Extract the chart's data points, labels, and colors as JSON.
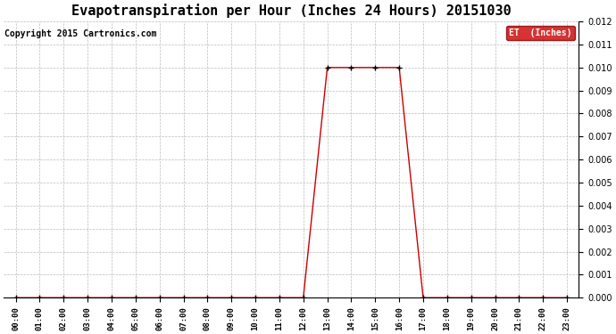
{
  "title": "Evapotranspiration per Hour (Inches 24 Hours) 20151030",
  "copyright": "Copyright 2015 Cartronics.com",
  "legend_label": "ET  (Inches)",
  "legend_bg": "#cc0000",
  "legend_text_color": "#ffffff",
  "line_color": "#cc0000",
  "marker_color": "#000000",
  "bg_color": "#ffffff",
  "grid_color": "#bbbbbb",
  "ylim": [
    0.0,
    0.012
  ],
  "yticks": [
    0.0,
    0.001,
    0.002,
    0.003,
    0.004,
    0.005,
    0.006,
    0.007,
    0.008,
    0.009,
    0.01,
    0.011,
    0.012
  ],
  "hours": [
    "00:00",
    "01:00",
    "02:00",
    "03:00",
    "04:00",
    "05:00",
    "06:00",
    "07:00",
    "08:00",
    "09:00",
    "10:00",
    "11:00",
    "12:00",
    "13:00",
    "14:00",
    "15:00",
    "16:00",
    "17:00",
    "18:00",
    "19:00",
    "20:00",
    "21:00",
    "22:00",
    "23:00"
  ],
  "values": [
    0.0,
    0.0,
    0.0,
    0.0,
    0.0,
    0.0,
    0.0,
    0.0,
    0.0,
    0.0,
    0.0,
    0.0,
    0.0,
    0.01,
    0.01,
    0.01,
    0.01,
    0.0,
    0.0,
    0.0,
    0.0,
    0.0,
    0.0,
    0.0
  ],
  "title_fontsize": 11,
  "copyright_fontsize": 7,
  "tick_fontsize": 6.5,
  "ytick_fontsize": 7
}
